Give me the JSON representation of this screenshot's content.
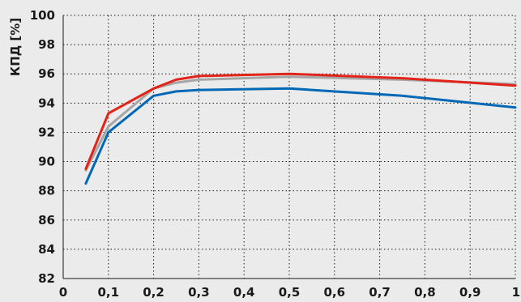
{
  "chart_data": {
    "type": "line",
    "title": "",
    "xlabel": "",
    "ylabel": "КПД [%]",
    "xlim": [
      0,
      1
    ],
    "ylim": [
      82,
      100
    ],
    "x_ticks": [
      "0",
      "0,1",
      "0,2",
      "0,3",
      "0,4",
      "0,5",
      "0,6",
      "0,7",
      "0,8",
      "0,9",
      "1"
    ],
    "y_ticks": [
      "82",
      "84",
      "86",
      "88",
      "90",
      "92",
      "94",
      "96",
      "98",
      "100"
    ],
    "x_tick_values": [
      0,
      0.1,
      0.2,
      0.3,
      0.4,
      0.5,
      0.6,
      0.7,
      0.8,
      0.9,
      1
    ],
    "y_tick_values": [
      82,
      84,
      86,
      88,
      90,
      92,
      94,
      96,
      98,
      100
    ],
    "grid": true,
    "legend": "none",
    "series": [
      {
        "color": "#0068b4",
        "x": [
          0.05,
          0.1,
          0.2,
          0.25,
          0.3,
          0.5,
          0.75,
          1.0
        ],
        "y": [
          88.5,
          92.0,
          94.5,
          94.8,
          94.9,
          95.0,
          94.5,
          93.7
        ]
      },
      {
        "color": "#a6a6a6",
        "x": [
          0.05,
          0.1,
          0.2,
          0.25,
          0.3,
          0.5,
          0.75,
          1.0
        ],
        "y": [
          89.4,
          92.4,
          95.0,
          95.4,
          95.6,
          95.8,
          95.6,
          95.3
        ]
      },
      {
        "color": "#e2231a",
        "x": [
          0.05,
          0.1,
          0.2,
          0.25,
          0.3,
          0.5,
          0.75,
          1.0
        ],
        "y": [
          89.5,
          93.3,
          95.0,
          95.6,
          95.85,
          96.0,
          95.7,
          95.2
        ]
      }
    ]
  }
}
